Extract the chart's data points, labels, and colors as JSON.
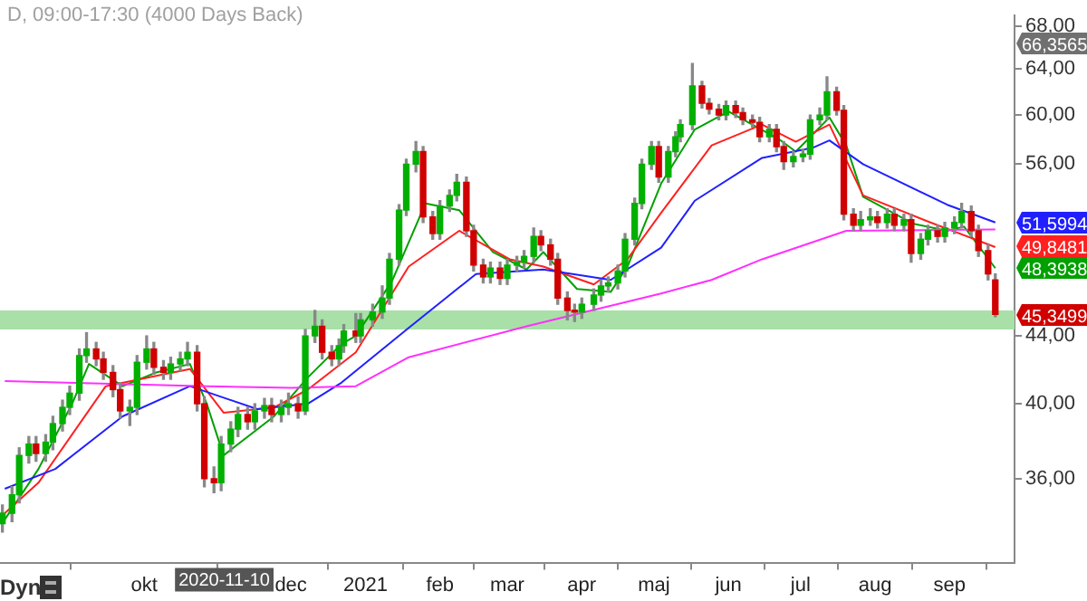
{
  "chart_data": {
    "type": "candlestick",
    "title": "D, 09:00-17:30 (4000 Days Back)",
    "x": [
      "2020-08-03",
      "2020-08-07",
      "2020-08-10",
      "2020-08-14",
      "2020-08-17",
      "2020-08-21",
      "2020-08-24",
      "2020-08-28",
      "2020-08-31",
      "2020-09-04",
      "2020-09-07",
      "2020-09-11",
      "2020-09-14",
      "2020-09-18",
      "2020-09-21",
      "2020-09-25",
      "2020-09-28",
      "2020-10-02",
      "2020-10-05",
      "2020-10-09",
      "2020-10-12",
      "2020-10-16",
      "2020-10-19",
      "2020-10-23",
      "2020-10-26",
      "2020-10-30",
      "2020-11-02",
      "2020-11-06",
      "2020-11-09",
      "2020-11-13",
      "2020-11-16",
      "2020-11-20",
      "2020-11-23",
      "2020-11-27",
      "2020-11-30",
      "2020-12-04",
      "2020-12-07",
      "2020-12-11",
      "2020-12-14",
      "2020-12-18",
      "2020-12-21",
      "2020-12-23",
      "2020-12-28",
      "2020-12-30",
      "2021-01-04",
      "2021-01-08",
      "2021-01-11",
      "2021-01-15",
      "2021-01-18",
      "2021-01-22",
      "2021-01-25",
      "2021-01-29",
      "2021-02-01",
      "2021-02-05",
      "2021-02-08",
      "2021-02-12",
      "2021-02-15",
      "2021-02-19",
      "2021-02-22",
      "2021-02-26",
      "2021-03-01",
      "2021-03-05",
      "2021-03-08",
      "2021-03-12",
      "2021-03-15",
      "2021-03-19",
      "2021-03-22",
      "2021-03-26",
      "2021-03-29",
      "2021-04-01",
      "2021-04-06",
      "2021-04-09",
      "2021-04-12",
      "2021-04-16",
      "2021-04-19",
      "2021-04-23",
      "2021-04-26",
      "2021-04-30",
      "2021-05-03",
      "2021-05-07",
      "2021-05-10",
      "2021-05-12",
      "2021-05-17",
      "2021-05-21",
      "2021-05-24",
      "2021-05-28",
      "2021-05-31",
      "2021-06-04",
      "2021-06-07",
      "2021-06-11",
      "2021-06-14",
      "2021-06-18",
      "2021-06-21",
      "2021-06-24",
      "2021-06-28",
      "2021-07-02",
      "2021-07-05",
      "2021-07-09",
      "2021-07-12",
      "2021-07-16",
      "2021-07-19",
      "2021-07-23",
      "2021-07-26",
      "2021-07-30",
      "2021-08-02",
      "2021-08-06",
      "2021-08-09",
      "2021-08-13",
      "2021-08-16",
      "2021-08-20",
      "2021-08-23",
      "2021-08-27",
      "2021-08-30",
      "2021-09-03",
      "2021-09-06",
      "2021-09-10",
      "2021-09-13",
      "2021-09-17",
      "2021-09-20"
    ],
    "xlim": [
      "2020-08-02",
      "2021-09-28"
    ],
    "ohlc": [
      [
        33.8,
        34.7,
        33.4,
        34.3
      ],
      [
        34.3,
        35.6,
        33.9,
        35.2
      ],
      [
        35.2,
        37.6,
        34.8,
        37.2
      ],
      [
        37.2,
        38.2,
        36.8,
        37.8
      ],
      [
        37.8,
        38.2,
        36.9,
        37.3
      ],
      [
        37.3,
        38.3,
        36.9,
        37.9
      ],
      [
        37.9,
        39.3,
        37.5,
        38.9
      ],
      [
        38.9,
        40.2,
        38.5,
        39.8
      ],
      [
        39.8,
        41.0,
        39.4,
        40.6
      ],
      [
        40.6,
        43.2,
        40.2,
        42.8
      ],
      [
        42.8,
        44.2,
        42.4,
        43.2
      ],
      [
        43.2,
        43.6,
        42.2,
        42.6
      ],
      [
        42.6,
        43.0,
        41.4,
        41.8
      ],
      [
        41.8,
        42.2,
        40.4,
        40.8
      ],
      [
        40.8,
        41.2,
        39.2,
        39.6
      ],
      [
        39.6,
        40.2,
        38.8,
        39.8
      ],
      [
        39.8,
        42.8,
        39.4,
        42.4
      ],
      [
        42.4,
        44.0,
        42.0,
        43.2
      ],
      [
        43.2,
        43.6,
        41.7,
        42.1
      ],
      [
        42.1,
        42.5,
        41.4,
        41.8
      ],
      [
        41.8,
        42.7,
        41.4,
        42.3
      ],
      [
        42.3,
        43.0,
        41.9,
        42.6
      ],
      [
        42.6,
        43.6,
        42.2,
        43.0
      ],
      [
        43.0,
        43.4,
        39.6,
        40.0
      ],
      [
        40.0,
        40.4,
        35.6,
        36.0
      ],
      [
        36.0,
        36.6,
        35.3,
        35.8
      ],
      [
        35.8,
        38.2,
        35.4,
        37.8
      ],
      [
        37.8,
        39.0,
        37.4,
        38.6
      ],
      [
        38.6,
        39.8,
        38.2,
        39.4
      ],
      [
        39.4,
        39.8,
        38.6,
        39.0
      ],
      [
        39.0,
        40.0,
        38.6,
        39.6
      ],
      [
        39.6,
        40.3,
        39.2,
        39.9
      ],
      [
        39.9,
        40.3,
        39.0,
        39.4
      ],
      [
        39.4,
        40.2,
        39.0,
        39.8
      ],
      [
        39.8,
        40.6,
        39.4,
        40.0
      ],
      [
        40.0,
        40.4,
        39.2,
        39.6
      ],
      [
        39.6,
        44.4,
        39.4,
        44.0
      ],
      [
        44.0,
        45.6,
        43.6,
        44.6
      ],
      [
        44.6,
        45.0,
        42.6,
        43.0
      ],
      [
        43.0,
        43.4,
        42.2,
        42.6
      ],
      [
        42.6,
        43.8,
        42.2,
        43.4
      ],
      [
        43.4,
        44.7,
        43.0,
        44.3
      ],
      [
        44.3,
        45.4,
        43.6,
        44.0
      ],
      [
        44.0,
        45.4,
        43.6,
        45.0
      ],
      [
        45.0,
        46.0,
        44.6,
        45.5
      ],
      [
        45.5,
        47.2,
        45.1,
        46.4
      ],
      [
        46.4,
        49.4,
        46.0,
        49.0
      ],
      [
        49.0,
        52.9,
        48.6,
        52.5
      ],
      [
        52.5,
        56.4,
        52.1,
        56.0
      ],
      [
        56.0,
        57.8,
        55.4,
        57.0
      ],
      [
        57.0,
        57.4,
        51.6,
        52.0
      ],
      [
        52.0,
        52.4,
        50.4,
        50.8
      ],
      [
        50.8,
        53.2,
        50.4,
        52.8
      ],
      [
        52.8,
        54.0,
        52.4,
        53.6
      ],
      [
        53.6,
        55.2,
        53.2,
        54.6
      ],
      [
        54.6,
        55.0,
        50.6,
        51.0
      ],
      [
        51.0,
        51.4,
        48.2,
        48.6
      ],
      [
        48.6,
        49.0,
        47.4,
        47.8
      ],
      [
        47.8,
        48.8,
        47.4,
        48.4
      ],
      [
        48.4,
        48.8,
        47.3,
        47.7
      ],
      [
        47.7,
        49.0,
        47.3,
        48.6
      ],
      [
        48.6,
        49.2,
        48.2,
        48.8
      ],
      [
        48.8,
        49.6,
        48.4,
        49.2
      ],
      [
        49.2,
        51.2,
        48.8,
        50.6
      ],
      [
        50.6,
        51.0,
        49.6,
        50.0
      ],
      [
        50.0,
        50.4,
        48.6,
        49.0
      ],
      [
        49.0,
        49.4,
        46.0,
        46.4
      ],
      [
        46.4,
        46.8,
        45.0,
        45.6
      ],
      [
        45.6,
        46.0,
        44.9,
        45.5
      ],
      [
        45.5,
        46.4,
        45.1,
        46.0
      ],
      [
        46.0,
        47.0,
        45.6,
        46.6
      ],
      [
        46.6,
        47.6,
        46.2,
        47.2
      ],
      [
        47.2,
        47.8,
        46.8,
        47.4
      ],
      [
        47.4,
        48.6,
        47.0,
        48.2
      ],
      [
        48.2,
        50.8,
        47.8,
        50.4
      ],
      [
        50.4,
        53.4,
        50.0,
        53.0
      ],
      [
        53.0,
        56.4,
        52.6,
        56.0
      ],
      [
        56.0,
        57.8,
        55.6,
        57.4
      ],
      [
        57.4,
        57.8,
        54.6,
        55.0
      ],
      [
        55.0,
        57.4,
        54.6,
        57.0
      ],
      [
        57.0,
        58.6,
        56.6,
        58.2
      ],
      [
        58.2,
        59.6,
        57.8,
        59.2
      ],
      [
        59.2,
        64.5,
        58.8,
        62.5
      ],
      [
        62.5,
        62.9,
        60.6,
        61.0
      ],
      [
        61.0,
        61.4,
        60.1,
        60.5
      ],
      [
        60.5,
        60.9,
        59.6,
        60.0
      ],
      [
        60.0,
        61.2,
        59.6,
        60.8
      ],
      [
        60.8,
        61.2,
        59.8,
        60.2
      ],
      [
        60.2,
        60.6,
        59.2,
        59.6
      ],
      [
        59.6,
        60.0,
        59.0,
        59.4
      ],
      [
        59.4,
        59.8,
        57.8,
        58.2
      ],
      [
        58.2,
        59.2,
        57.8,
        58.8
      ],
      [
        58.8,
        59.2,
        57.0,
        57.4
      ],
      [
        57.4,
        57.8,
        55.6,
        56.2
      ],
      [
        56.2,
        57.0,
        55.8,
        56.6
      ],
      [
        56.6,
        57.2,
        56.2,
        56.8
      ],
      [
        56.8,
        60.0,
        56.4,
        59.6
      ],
      [
        59.6,
        60.6,
        59.2,
        60.0
      ],
      [
        60.0,
        63.3,
        59.6,
        62.0
      ],
      [
        62.0,
        62.4,
        60.0,
        60.4
      ],
      [
        60.4,
        60.8,
        51.8,
        52.2
      ],
      [
        52.2,
        52.6,
        51.0,
        51.4
      ],
      [
        51.4,
        52.4,
        51.0,
        51.8
      ],
      [
        51.8,
        52.6,
        51.4,
        52.0
      ],
      [
        52.0,
        52.4,
        51.2,
        51.6
      ],
      [
        51.6,
        52.6,
        51.2,
        52.2
      ],
      [
        52.2,
        52.6,
        51.0,
        51.4
      ],
      [
        51.4,
        52.2,
        51.0,
        51.8
      ],
      [
        51.8,
        52.2,
        48.8,
        49.4
      ],
      [
        49.4,
        50.8,
        49.0,
        50.4
      ],
      [
        50.4,
        51.4,
        50.0,
        51.0
      ],
      [
        51.0,
        51.4,
        50.2,
        50.6
      ],
      [
        50.6,
        51.6,
        50.2,
        51.2
      ],
      [
        51.2,
        52.0,
        50.8,
        51.6
      ],
      [
        51.6,
        53.0,
        51.2,
        52.4
      ],
      [
        52.4,
        52.8,
        50.6,
        51.0
      ],
      [
        51.0,
        51.4,
        49.2,
        49.6
      ],
      [
        49.6,
        50.0,
        47.6,
        48.0
      ],
      [
        47.6,
        48.0,
        45.2,
        45.3499
      ]
    ],
    "series": [
      {
        "type": "line",
        "color": "#ff30ff",
        "x": [
          "2020-08-04",
          "2020-10-27",
          "2020-12-01",
          "2020-12-28",
          "2021-01-19",
          "2021-03-09",
          "2021-05-04",
          "2021-05-25",
          "2021-06-15",
          "2021-07-20",
          "2021-09-20"
        ],
        "values": [
          41.3,
          41.0,
          40.9,
          41.0,
          42.7,
          44.6,
          46.7,
          47.6,
          49.0,
          51.0,
          51.1
        ]
      },
      {
        "type": "line",
        "color": "#2020ff",
        "x": [
          "2020-08-04",
          "2020-08-25",
          "2020-09-22",
          "2020-10-20",
          "2020-11-17",
          "2020-12-08",
          "2020-12-22",
          "2021-01-19",
          "2021-02-16",
          "2021-03-16",
          "2021-04-13",
          "2021-05-04",
          "2021-05-18",
          "2021-06-15",
          "2021-07-06",
          "2021-07-13",
          "2021-07-27",
          "2021-08-31",
          "2021-09-20"
        ],
        "values": [
          35.5,
          36.5,
          39.3,
          41.0,
          39.7,
          40.0,
          41.2,
          44.5,
          48.0,
          48.3,
          47.6,
          49.8,
          53.2,
          56.5,
          57.3,
          57.9,
          56.0,
          52.9,
          51.5994
        ],
        "value_labels": [
          null,
          null,
          null,
          null,
          null,
          null,
          null,
          null,
          null,
          null,
          null,
          null,
          null,
          null,
          null,
          null,
          null,
          null,
          "51,5994"
        ]
      },
      {
        "type": "line",
        "color": "#ff2020",
        "x": [
          "2020-08-04",
          "2020-08-18",
          "2020-09-15",
          "2020-10-06",
          "2020-10-20",
          "2020-11-03",
          "2020-11-24",
          "2020-12-08",
          "2020-12-28",
          "2021-01-19",
          "2021-02-09",
          "2021-03-02",
          "2021-03-16",
          "2021-04-06",
          "2021-04-20",
          "2021-05-04",
          "2021-05-25",
          "2021-06-15",
          "2021-06-29",
          "2021-07-13",
          "2021-07-27",
          "2021-08-24",
          "2021-09-20"
        ],
        "values": [
          34.3,
          35.8,
          41.0,
          41.6,
          42.0,
          39.5,
          39.8,
          40.8,
          43.0,
          48.5,
          51.0,
          49.0,
          48.5,
          47.3,
          49.0,
          52.3,
          57.5,
          59.2,
          57.8,
          59.2,
          53.6,
          51.6,
          49.8481
        ],
        "value_labels": [
          null,
          null,
          null,
          null,
          null,
          null,
          null,
          null,
          null,
          null,
          null,
          null,
          null,
          null,
          null,
          null,
          null,
          null,
          null,
          null,
          null,
          null,
          "49,8481"
        ]
      },
      {
        "type": "line",
        "color": "#00a000",
        "x": [
          "2020-08-04",
          "2020-08-18",
          "2020-09-01",
          "2020-09-08",
          "2020-09-22",
          "2020-10-06",
          "2020-10-20",
          "2020-10-27",
          "2020-11-03",
          "2020-11-24",
          "2020-12-08",
          "2020-12-22",
          "2020-12-28",
          "2021-01-12",
          "2021-01-26",
          "2021-02-09",
          "2021-02-23",
          "2021-03-09",
          "2021-03-16",
          "2021-03-30",
          "2021-04-13",
          "2021-04-20",
          "2021-05-04",
          "2021-05-18",
          "2021-06-01",
          "2021-06-22",
          "2021-06-29",
          "2021-07-13",
          "2021-07-20",
          "2021-07-27",
          "2021-08-17",
          "2021-08-31",
          "2021-09-07",
          "2021-09-20"
        ],
        "values": [
          34.0,
          36.5,
          40.0,
          42.3,
          41.0,
          41.8,
          42.3,
          40.0,
          37.2,
          39.3,
          41.5,
          43.5,
          44.0,
          47.5,
          53.0,
          52.5,
          49.5,
          48.3,
          49.5,
          47.0,
          46.8,
          48.5,
          54.5,
          58.8,
          60.3,
          58.0,
          57.0,
          59.8,
          57.5,
          53.5,
          51.5,
          51.0,
          51.3,
          48.3938
        ],
        "value_labels": [
          null,
          null,
          null,
          null,
          null,
          null,
          null,
          null,
          null,
          null,
          null,
          null,
          null,
          null,
          null,
          null,
          null,
          null,
          null,
          null,
          null,
          null,
          null,
          null,
          null,
          null,
          null,
          null,
          null,
          null,
          null,
          null,
          null,
          "48,3938"
        ]
      }
    ],
    "log": true,
    "ylim": [
      32,
      69
    ],
    "yticks": [
      {
        "value": 36,
        "label": "36,00"
      },
      {
        "value": 40,
        "label": "40,00"
      },
      {
        "value": 44,
        "label": "44,00"
      },
      {
        "value": 56,
        "label": "56,00"
      },
      {
        "value": 60,
        "label": "60,00"
      },
      {
        "value": 64,
        "label": "64,00"
      },
      {
        "value": 68,
        "label": "68,00"
      }
    ],
    "xticks": [
      {
        "value": "2020-10-01",
        "label": "okt"
      },
      {
        "value": "2020-12-01",
        "label": "dec"
      },
      {
        "value": "2021-01-01",
        "label": "2021"
      },
      {
        "value": "2021-02-01",
        "label": "feb"
      },
      {
        "value": "2021-03-01",
        "label": "mar"
      },
      {
        "value": "2021-04-01",
        "label": "apr"
      },
      {
        "value": "2021-05-01",
        "label": "maj"
      },
      {
        "value": "2021-06-01",
        "label": "jun"
      },
      {
        "value": "2021-07-01",
        "label": "jul"
      },
      {
        "value": "2021-08-01",
        "label": "aug"
      },
      {
        "value": "2021-09-01",
        "label": "sep"
      }
    ],
    "bands": [
      {
        "axis": "y",
        "from": 44.4,
        "to": 45.6,
        "color": "#a8e0a8"
      }
    ],
    "annotations": [
      "Dyn",
      "2020-11-10",
      "66,3565",
      "45,3499"
    ]
  }
}
